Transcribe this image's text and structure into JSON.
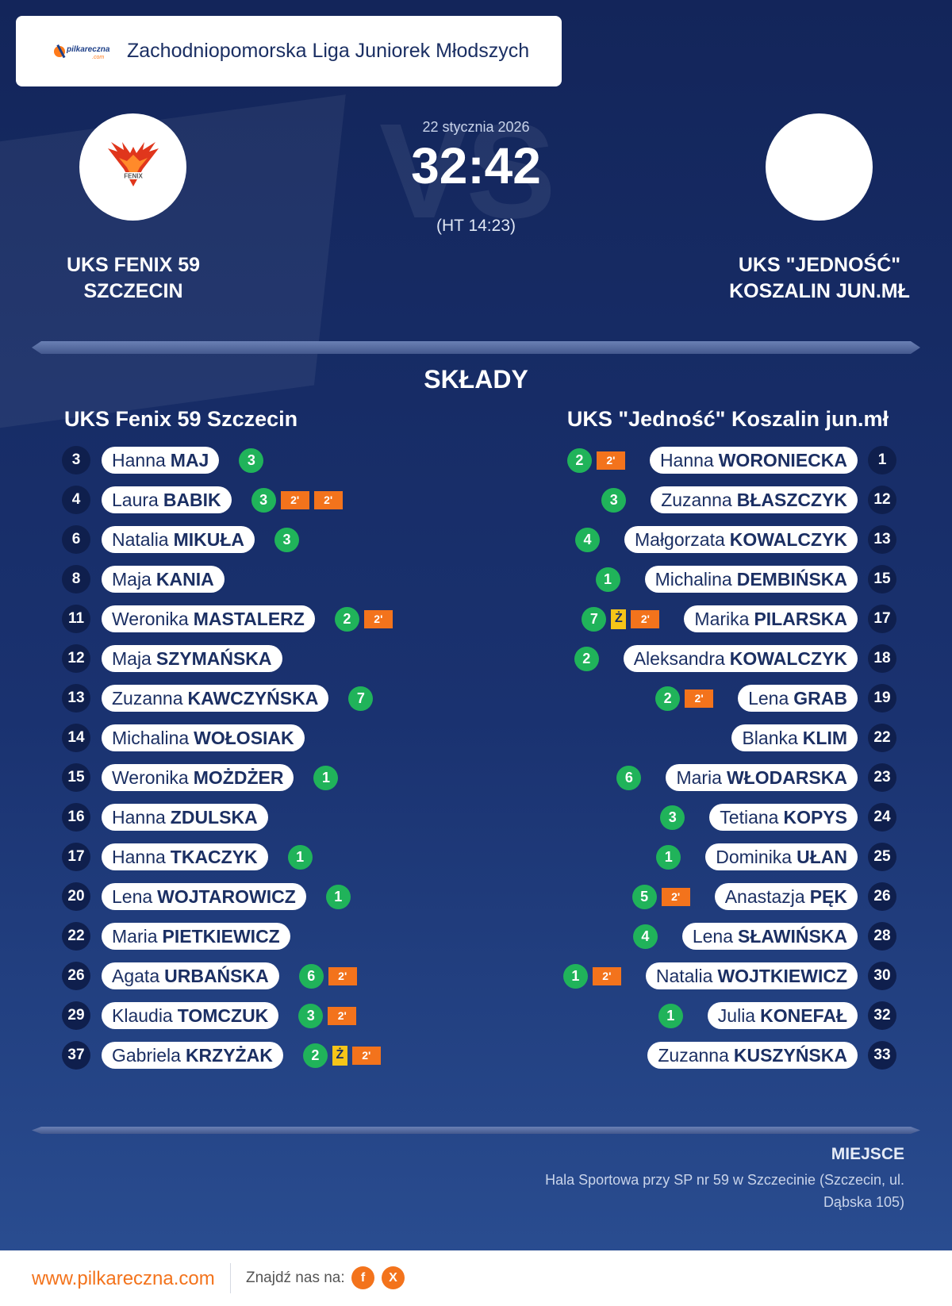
{
  "header": {
    "logo_text": "pilkareczna",
    "logo_sub": ".com",
    "league": "Zachodniopomorska Liga Juniorek Młodszych"
  },
  "match": {
    "date": "22 stycznia 2026",
    "score": "32:42",
    "half_time": "(HT 14:23)",
    "bg_vs": "VS"
  },
  "home_team": {
    "name_line1": "UKS FENIX 59",
    "name_line2": "SZCZECIN",
    "logo_text": "FENIX",
    "roster_title": "UKS Fenix 59 Szczecin",
    "players": [
      {
        "number": "3",
        "first": "Hanna",
        "last": "MAJ",
        "goals": "3",
        "yellow": false,
        "suspensions": 0
      },
      {
        "number": "4",
        "first": "Laura",
        "last": "BABIK",
        "goals": "3",
        "yellow": false,
        "suspensions": 2
      },
      {
        "number": "6",
        "first": "Natalia",
        "last": "MIKUŁA",
        "goals": "3",
        "yellow": false,
        "suspensions": 0
      },
      {
        "number": "8",
        "first": "Maja",
        "last": "KANIA",
        "goals": "",
        "yellow": false,
        "suspensions": 0
      },
      {
        "number": "11",
        "first": "Weronika",
        "last": "MASTALERZ",
        "goals": "2",
        "yellow": false,
        "suspensions": 1
      },
      {
        "number": "12",
        "first": "Maja",
        "last": "SZYMAŃSKA",
        "goals": "",
        "yellow": false,
        "suspensions": 0
      },
      {
        "number": "13",
        "first": "Zuzanna",
        "last": "KAWCZYŃSKA",
        "goals": "7",
        "yellow": false,
        "suspensions": 0
      },
      {
        "number": "14",
        "first": "Michalina",
        "last": "WOŁOSIAK",
        "goals": "",
        "yellow": false,
        "suspensions": 0
      },
      {
        "number": "15",
        "first": "Weronika",
        "last": "MOŻDŻER",
        "goals": "1",
        "yellow": false,
        "suspensions": 0
      },
      {
        "number": "16",
        "first": "Hanna",
        "last": "ZDULSKA",
        "goals": "",
        "yellow": false,
        "suspensions": 0
      },
      {
        "number": "17",
        "first": "Hanna",
        "last": "TKACZYK",
        "goals": "1",
        "yellow": false,
        "suspensions": 0
      },
      {
        "number": "20",
        "first": "Lena",
        "last": "WOJTAROWICZ",
        "goals": "1",
        "yellow": false,
        "suspensions": 0
      },
      {
        "number": "22",
        "first": "Maria",
        "last": "PIETKIEWICZ",
        "goals": "",
        "yellow": false,
        "suspensions": 0
      },
      {
        "number": "26",
        "first": "Agata",
        "last": "URBAŃSKA",
        "goals": "6",
        "yellow": false,
        "suspensions": 1
      },
      {
        "number": "29",
        "first": "Klaudia",
        "last": "TOMCZUK",
        "goals": "3",
        "yellow": false,
        "suspensions": 1
      },
      {
        "number": "37",
        "first": "Gabriela",
        "last": "KRZYŻAK",
        "goals": "2",
        "yellow": true,
        "suspensions": 1
      }
    ]
  },
  "away_team": {
    "name_line1": "UKS \"JEDNOŚĆ\"",
    "name_line2": "KOSZALIN JUN.MŁ",
    "roster_title": "UKS \"Jedność\" Koszalin jun.mł",
    "players": [
      {
        "number": "1",
        "first": "Hanna",
        "last": "WORONIECKA",
        "goals": "2",
        "yellow": false,
        "suspensions": 1
      },
      {
        "number": "12",
        "first": "Zuzanna",
        "last": "BŁASZCZYK",
        "goals": "3",
        "yellow": false,
        "suspensions": 0
      },
      {
        "number": "13",
        "first": "Małgorzata",
        "last": "KOWALCZYK",
        "goals": "4",
        "yellow": false,
        "suspensions": 0
      },
      {
        "number": "15",
        "first": "Michalina",
        "last": "DEMBIŃSKA",
        "goals": "1",
        "yellow": false,
        "suspensions": 0
      },
      {
        "number": "17",
        "first": "Marika",
        "last": "PILARSKA",
        "goals": "7",
        "yellow": true,
        "suspensions": 1
      },
      {
        "number": "18",
        "first": "Aleksandra",
        "last": "KOWALCZYK",
        "goals": "2",
        "yellow": false,
        "suspensions": 0
      },
      {
        "number": "19",
        "first": "Lena",
        "last": "GRAB",
        "goals": "2",
        "yellow": false,
        "suspensions": 1
      },
      {
        "number": "22",
        "first": "Blanka",
        "last": "KLIM",
        "goals": "",
        "yellow": false,
        "suspensions": 0
      },
      {
        "number": "23",
        "first": "Maria",
        "last": "WŁODARSKA",
        "goals": "6",
        "yellow": false,
        "suspensions": 0
      },
      {
        "number": "24",
        "first": "Tetiana",
        "last": "KOPYS",
        "goals": "3",
        "yellow": false,
        "suspensions": 0
      },
      {
        "number": "25",
        "first": "Dominika",
        "last": "UŁAN",
        "goals": "1",
        "yellow": false,
        "suspensions": 0
      },
      {
        "number": "26",
        "first": "Anastazja",
        "last": "PĘK",
        "goals": "5",
        "yellow": false,
        "suspensions": 1
      },
      {
        "number": "28",
        "first": "Lena",
        "last": "SŁAWIŃSKA",
        "goals": "4",
        "yellow": false,
        "suspensions": 0
      },
      {
        "number": "30",
        "first": "Natalia",
        "last": "WOJTKIEWICZ",
        "goals": "1",
        "yellow": false,
        "suspensions": 1
      },
      {
        "number": "32",
        "first": "Julia",
        "last": "KONEFAŁ",
        "goals": "1",
        "yellow": false,
        "suspensions": 0
      },
      {
        "number": "33",
        "first": "Zuzanna",
        "last": "KUSZYŃSKA",
        "goals": "",
        "yellow": false,
        "suspensions": 0
      }
    ]
  },
  "labels": {
    "lineups": "SKŁADY",
    "suspension": "2'",
    "yellow_card": "Ż"
  },
  "venue": {
    "label": "MIEJSCE",
    "text": "Hala Sportowa przy SP nr 59 w Szczecinie (Szczecin, ul. Dąbska 105)"
  },
  "footer": {
    "url": "www.pilkareczna.com",
    "find_us": "Znajdź nas na:",
    "facebook": "f",
    "x": "X"
  },
  "colors": {
    "background": "#1a3270",
    "goal_badge": "#20b35a",
    "suspension_badge": "#f3731c",
    "yellow_card": "#f6c518",
    "accent": "#f3731c"
  },
  "icons": [
    "pilkareczna-logo-icon",
    "fenix-phoenix-logo-icon",
    "facebook-icon",
    "x-icon"
  ]
}
